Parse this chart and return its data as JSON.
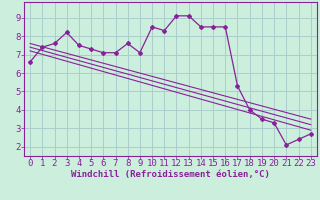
{
  "background_color": "#cceedd",
  "grid_color": "#aacccc",
  "line_color": "#882299",
  "xlabel": "Windchill (Refroidissement éolien,°C)",
  "ylabel_ticks": [
    2,
    3,
    4,
    5,
    6,
    7,
    8,
    9
  ],
  "xtick_labels": [
    "0",
    "1",
    "2",
    "3",
    "4",
    "5",
    "6",
    "7",
    "8",
    "9",
    "10",
    "11",
    "12",
    "13",
    "14",
    "15",
    "16",
    "17",
    "18",
    "19",
    "20",
    "21",
    "22",
    "23"
  ],
  "xtick_positions": [
    0,
    1,
    2,
    3,
    4,
    5,
    6,
    7,
    8,
    9,
    10,
    11,
    12,
    13,
    14,
    15,
    16,
    17,
    18,
    19,
    20,
    21,
    22,
    23
  ],
  "xlim": [
    -0.5,
    23.5
  ],
  "ylim": [
    1.5,
    9.85
  ],
  "main_line_x": [
    0,
    1,
    2,
    3,
    4,
    5,
    6,
    7,
    8,
    9,
    10,
    11,
    12,
    13,
    14,
    15,
    16,
    17,
    18,
    19,
    20,
    21,
    22,
    23
  ],
  "main_line_y": [
    6.6,
    7.4,
    7.6,
    8.2,
    7.5,
    7.3,
    7.1,
    7.1,
    7.6,
    7.1,
    8.5,
    8.3,
    9.1,
    9.1,
    8.5,
    8.5,
    8.5,
    5.3,
    4.0,
    3.5,
    3.3,
    2.1,
    2.4,
    2.7
  ],
  "trend_line1_x": [
    0,
    23
  ],
  "trend_line1_y": [
    7.6,
    3.5
  ],
  "trend_line2_x": [
    0,
    23
  ],
  "trend_line2_y": [
    7.4,
    3.2
  ],
  "trend_line3_x": [
    0,
    23
  ],
  "trend_line3_y": [
    7.2,
    2.9
  ],
  "tick_fontsize": 6.5,
  "xlabel_fontsize": 6.5,
  "xlabel_fontweight": "bold"
}
